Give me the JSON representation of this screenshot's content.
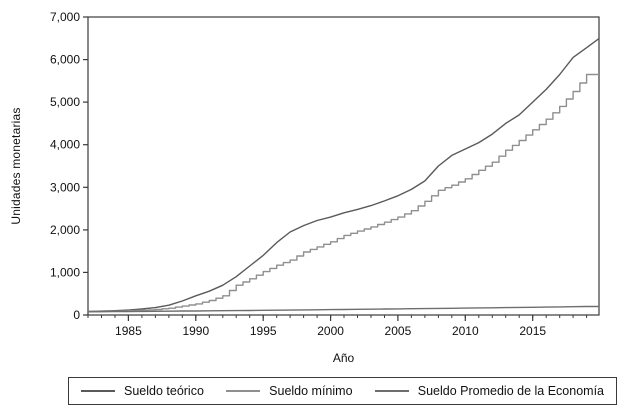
{
  "chart_data": {
    "type": "line",
    "title": "",
    "xlabel": "Año",
    "ylabel": "Unidades monetarias",
    "xlim": [
      1982,
      2019.92
    ],
    "ylim": [
      0,
      7000
    ],
    "grid": false,
    "legend_position": "bottom",
    "x_major_ticks": [
      1985,
      1990,
      1995,
      2000,
      2005,
      2010,
      2015
    ],
    "x_minor_tick_interval": 1,
    "y_ticks": [
      0,
      1000,
      2000,
      3000,
      4000,
      5000,
      6000,
      7000
    ],
    "y_tick_labels": [
      "0",
      "1,000",
      "2,000",
      "3,000",
      "4,000",
      "5,000",
      "6,000",
      "7,000"
    ],
    "x": [
      1982,
      1983,
      1984,
      1985,
      1986,
      1987,
      1988,
      1989,
      1990,
      1991,
      1992,
      1993,
      1994,
      1995,
      1996,
      1997,
      1998,
      1999,
      2000,
      2001,
      2002,
      2003,
      2004,
      2005,
      2006,
      2007,
      2008,
      2009,
      2010,
      2011,
      2012,
      2013,
      2014,
      2015,
      2016,
      2017,
      2018,
      2019
    ],
    "series": [
      {
        "name": "Sueldo teórico",
        "style": "smooth",
        "color": "#5a5a5a",
        "values": [
          85,
          92,
          100,
          115,
          140,
          175,
          230,
          330,
          450,
          560,
          700,
          900,
          1150,
          1400,
          1700,
          1950,
          2100,
          2220,
          2300,
          2400,
          2480,
          2570,
          2680,
          2800,
          2950,
          3150,
          3500,
          3750,
          3900,
          4050,
          4250,
          4500,
          4700,
          5000,
          5300,
          5650,
          6050,
          6280
        ]
      },
      {
        "name": "Sueldo mínimo",
        "style": "step",
        "color": "#8f8f8f",
        "values": [
          80,
          85,
          90,
          100,
          110,
          130,
          160,
          210,
          260,
          340,
          450,
          700,
          850,
          1020,
          1170,
          1290,
          1480,
          1600,
          1720,
          1870,
          1970,
          2070,
          2180,
          2300,
          2450,
          2670,
          2930,
          3050,
          3200,
          3400,
          3590,
          3870,
          4100,
          4350,
          4600,
          4900,
          5250,
          5650
        ]
      },
      {
        "name": "Sueldo Promedio de la Economía",
        "style": "line",
        "color": "#6e6e6e",
        "values": [
          75,
          78,
          80,
          83,
          85,
          88,
          90,
          93,
          95,
          98,
          100,
          103,
          106,
          110,
          113,
          116,
          120,
          123,
          126,
          130,
          133,
          136,
          140,
          143,
          147,
          150,
          154,
          158,
          162,
          166,
          170,
          174,
          178,
          182,
          186,
          190,
          195,
          200
        ]
      }
    ]
  }
}
